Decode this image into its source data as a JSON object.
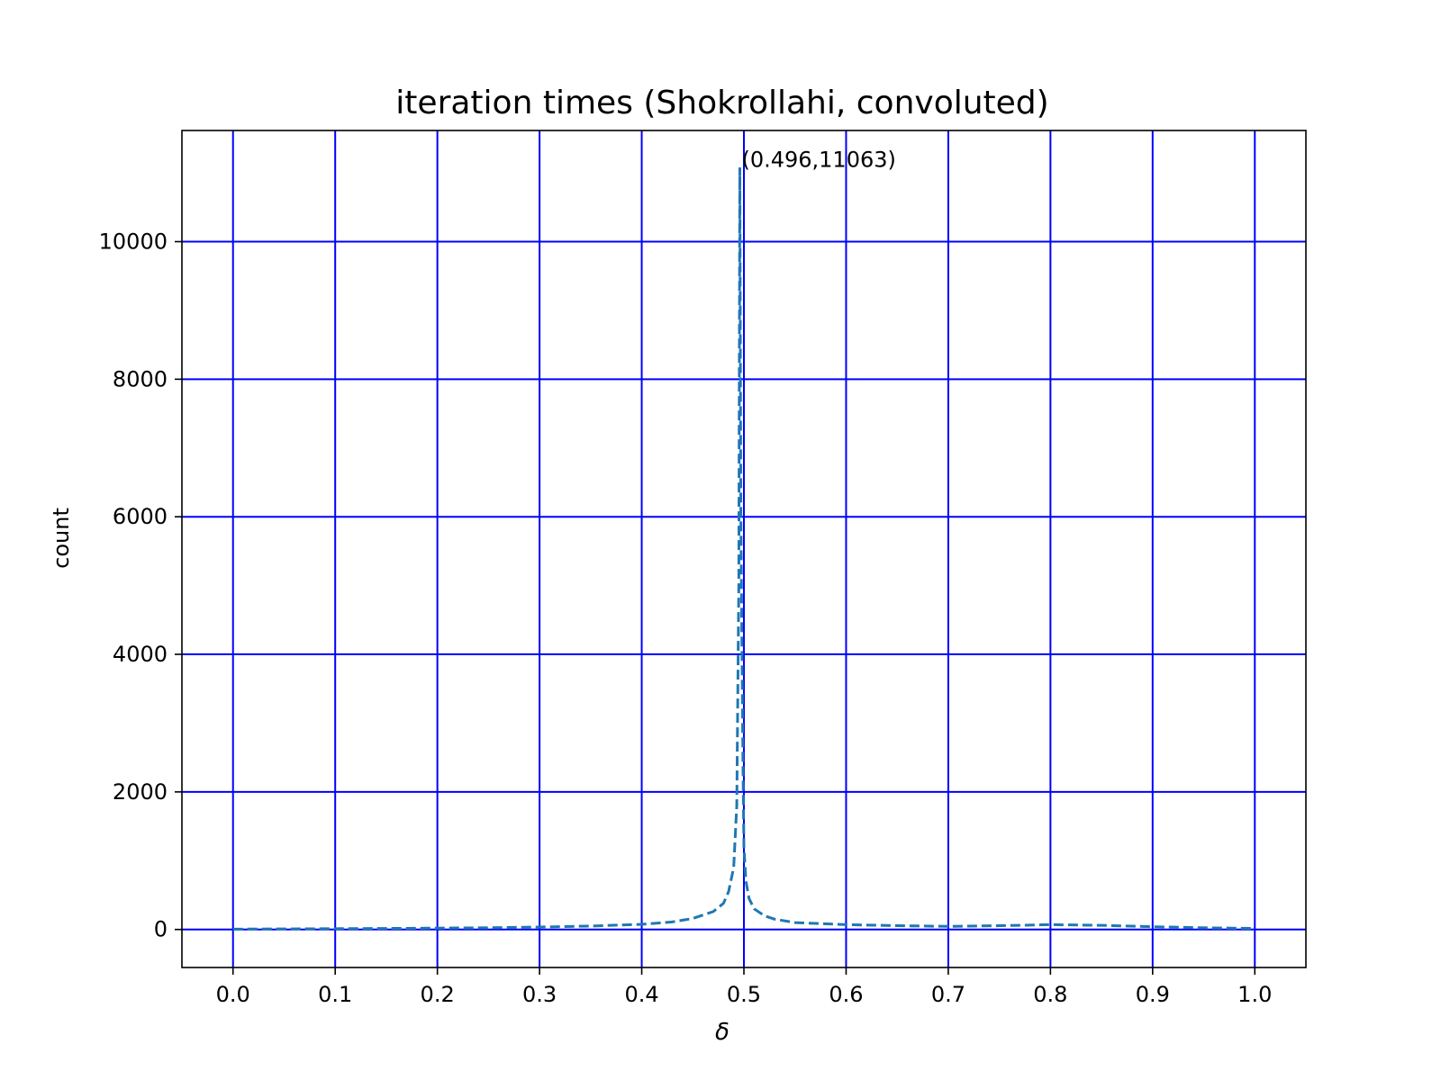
{
  "chart_data": {
    "type": "line",
    "title": "iteration times (Shokrollahi, convoluted)",
    "xlabel": "δ",
    "ylabel": "count",
    "xlim": [
      -0.05,
      1.05
    ],
    "ylim": [
      -553,
      11616
    ],
    "xticks": [
      0.0,
      0.1,
      0.2,
      0.3,
      0.4,
      0.5,
      0.6,
      0.7,
      0.8,
      0.9,
      1.0
    ],
    "xtick_labels": [
      "0.0",
      "0.1",
      "0.2",
      "0.3",
      "0.4",
      "0.5",
      "0.6",
      "0.7",
      "0.8",
      "0.9",
      "1.0"
    ],
    "yticks": [
      0,
      2000,
      4000,
      6000,
      8000,
      10000
    ],
    "ytick_labels": [
      "0",
      "2000",
      "4000",
      "6000",
      "8000",
      "10000"
    ],
    "grid": true,
    "grid_color": "#0000ff",
    "series": [
      {
        "color": "#1f77b4",
        "line_style": "dashed",
        "x": [
          0.0,
          0.05,
          0.1,
          0.15,
          0.2,
          0.25,
          0.3,
          0.35,
          0.4,
          0.43,
          0.45,
          0.47,
          0.48,
          0.485,
          0.49,
          0.493,
          0.495,
          0.496,
          0.497,
          0.499,
          0.5,
          0.502,
          0.505,
          0.51,
          0.52,
          0.53,
          0.55,
          0.6,
          0.65,
          0.7,
          0.75,
          0.8,
          0.85,
          0.9,
          0.95,
          1.0
        ],
        "y": [
          5,
          8,
          12,
          15,
          20,
          25,
          35,
          50,
          75,
          110,
          160,
          260,
          380,
          550,
          900,
          1800,
          5000,
          11063,
          6000,
          2500,
          1200,
          700,
          450,
          300,
          200,
          150,
          100,
          70,
          55,
          45,
          55,
          70,
          60,
          40,
          25,
          15
        ]
      }
    ],
    "annotations": [
      {
        "text": "(0.496,11063)",
        "x": 0.496,
        "y": 11063
      }
    ]
  }
}
